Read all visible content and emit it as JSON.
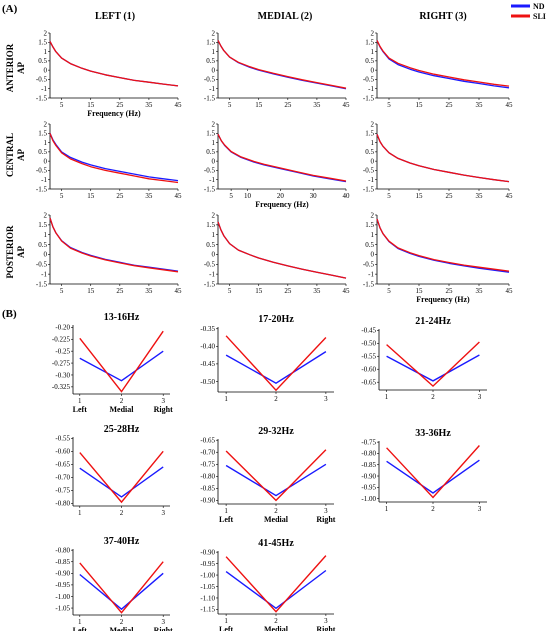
{
  "panel_a_label": "(A)",
  "panel_b_label": "(B)",
  "columns": [
    "LEFT (1)",
    "MEDIAL (2)",
    "RIGHT (3)"
  ],
  "rows": [
    {
      "name": "ANTERIOR",
      "sub": "AP"
    },
    {
      "name": "CENTRAL",
      "sub": "AP"
    },
    {
      "name": "POSTERIOR",
      "sub": "AP"
    }
  ],
  "legend": [
    {
      "label": "ND",
      "color": "#1a1aff"
    },
    {
      "label": "SLI",
      "color": "#ee1111"
    }
  ],
  "chart_data": [
    {
      "type": "line",
      "id": "A-anterior-left",
      "xlabel": "Frequency (Hz)",
      "ylabel": "AP",
      "xticks": [
        5,
        15,
        25,
        35,
        45
      ],
      "yticks": [
        2,
        1.5,
        1,
        0.5,
        0,
        -0.5,
        -1,
        -1.5
      ],
      "xlim": [
        1,
        45
      ],
      "ylim": [
        -1.5,
        2
      ],
      "x": [
        1,
        2,
        3,
        5,
        8,
        12,
        15,
        20,
        25,
        30,
        35,
        40,
        45
      ],
      "series": [
        {
          "name": "ND",
          "values": [
            1.55,
            1.25,
            1.0,
            0.65,
            0.35,
            0.1,
            -0.05,
            -0.25,
            -0.4,
            -0.55,
            -0.65,
            -0.75,
            -0.85
          ]
        },
        {
          "name": "SLI",
          "values": [
            1.55,
            1.25,
            1.0,
            0.65,
            0.35,
            0.1,
            -0.05,
            -0.25,
            -0.4,
            -0.55,
            -0.65,
            -0.75,
            -0.85
          ]
        }
      ]
    },
    {
      "type": "line",
      "id": "A-anterior-medial",
      "xlabel": "",
      "ylabel": "",
      "xticks": [
        5,
        15,
        25,
        35,
        45
      ],
      "yticks": [
        2,
        1.5,
        1,
        0.5,
        0,
        -0.5,
        -1,
        -1.5
      ],
      "xlim": [
        1,
        45
      ],
      "ylim": [
        -1.5,
        2
      ],
      "x": [
        1,
        2,
        3,
        5,
        8,
        12,
        15,
        20,
        25,
        30,
        35,
        40,
        45
      ],
      "series": [
        {
          "name": "ND",
          "values": [
            1.6,
            1.3,
            1.05,
            0.7,
            0.4,
            0.15,
            0.0,
            -0.2,
            -0.38,
            -0.55,
            -0.7,
            -0.85,
            -1.0
          ]
        },
        {
          "name": "SLI",
          "values": [
            1.6,
            1.3,
            1.05,
            0.7,
            0.42,
            0.18,
            0.03,
            -0.17,
            -0.35,
            -0.52,
            -0.67,
            -0.82,
            -0.97
          ]
        }
      ]
    },
    {
      "type": "line",
      "id": "A-anterior-right",
      "xlabel": "",
      "ylabel": "",
      "xticks": [
        5,
        15,
        25,
        35,
        45
      ],
      "yticks": [
        2,
        1.5,
        1,
        0.5,
        0,
        -0.5,
        -1,
        -1.5
      ],
      "xlim": [
        1,
        45
      ],
      "ylim": [
        -1.5,
        2
      ],
      "x": [
        1,
        2,
        3,
        5,
        8,
        12,
        15,
        20,
        25,
        30,
        35,
        40,
        45
      ],
      "series": [
        {
          "name": "ND",
          "values": [
            1.6,
            1.25,
            1.0,
            0.6,
            0.3,
            0.05,
            -0.1,
            -0.3,
            -0.45,
            -0.6,
            -0.72,
            -0.85,
            -0.95
          ]
        },
        {
          "name": "SLI",
          "values": [
            1.6,
            1.28,
            1.03,
            0.65,
            0.37,
            0.13,
            -0.02,
            -0.22,
            -0.37,
            -0.52,
            -0.64,
            -0.76,
            -0.86
          ]
        }
      ]
    },
    {
      "type": "line",
      "id": "A-central-left",
      "xlabel": "",
      "ylabel": "AP",
      "xticks": [
        5,
        15,
        25,
        35,
        45
      ],
      "yticks": [
        2,
        1.5,
        1,
        0.5,
        0,
        -0.5,
        -1,
        -1.5
      ],
      "xlim": [
        1,
        45
      ],
      "ylim": [
        -1.5,
        2
      ],
      "x": [
        1,
        2,
        3,
        5,
        8,
        12,
        15,
        20,
        25,
        30,
        35,
        40,
        45
      ],
      "series": [
        {
          "name": "ND",
          "values": [
            1.5,
            1.15,
            0.9,
            0.5,
            0.2,
            -0.05,
            -0.2,
            -0.4,
            -0.55,
            -0.7,
            -0.85,
            -0.95,
            -1.05
          ]
        },
        {
          "name": "SLI",
          "values": [
            1.5,
            1.1,
            0.85,
            0.45,
            0.12,
            -0.13,
            -0.3,
            -0.5,
            -0.65,
            -0.8,
            -0.95,
            -1.05,
            -1.15
          ]
        }
      ]
    },
    {
      "type": "line",
      "id": "A-central-medial",
      "xlabel": "Frequency (Hz)",
      "ylabel": "",
      "xticks": [
        5,
        10,
        20,
        30,
        40
      ],
      "yticks": [
        2,
        1.5,
        1,
        0.5,
        0,
        -0.5,
        -1,
        -1.5
      ],
      "xlim": [
        1,
        40
      ],
      "ylim": [
        -1.5,
        2
      ],
      "x": [
        1,
        2,
        3,
        5,
        8,
        12,
        15,
        20,
        25,
        30,
        35,
        40
      ],
      "series": [
        {
          "name": "ND",
          "values": [
            1.45,
            1.1,
            0.85,
            0.5,
            0.2,
            -0.05,
            -0.2,
            -0.4,
            -0.6,
            -0.8,
            -0.95,
            -1.1
          ]
        },
        {
          "name": "SLI",
          "values": [
            1.45,
            1.1,
            0.87,
            0.52,
            0.23,
            -0.02,
            -0.17,
            -0.37,
            -0.57,
            -0.77,
            -0.92,
            -1.07
          ]
        }
      ]
    },
    {
      "type": "line",
      "id": "A-central-right",
      "xlabel": "",
      "ylabel": "",
      "xticks": [
        5,
        15,
        25,
        35,
        45
      ],
      "yticks": [
        2,
        1.5,
        1,
        0.5,
        0,
        -0.5,
        -1,
        -1.5
      ],
      "xlim": [
        1,
        45
      ],
      "ylim": [
        -1.5,
        2
      ],
      "x": [
        1,
        2,
        3,
        5,
        8,
        12,
        15,
        20,
        25,
        30,
        35,
        40,
        45
      ],
      "series": [
        {
          "name": "ND",
          "values": [
            1.45,
            1.05,
            0.8,
            0.45,
            0.15,
            -0.1,
            -0.25,
            -0.45,
            -0.6,
            -0.75,
            -0.88,
            -1.0,
            -1.1
          ]
        },
        {
          "name": "SLI",
          "values": [
            1.45,
            1.05,
            0.8,
            0.45,
            0.15,
            -0.1,
            -0.25,
            -0.45,
            -0.6,
            -0.75,
            -0.88,
            -1.0,
            -1.1
          ]
        }
      ]
    },
    {
      "type": "line",
      "id": "A-posterior-left",
      "xlabel": "",
      "ylabel": "AP",
      "xticks": [
        5,
        15,
        25,
        35,
        45
      ],
      "yticks": [
        2,
        1.5,
        1,
        0.5,
        0,
        -0.5,
        -1,
        -1.5
      ],
      "xlim": [
        1,
        45
      ],
      "ylim": [
        -1.5,
        2
      ],
      "x": [
        1,
        2,
        3,
        5,
        8,
        12,
        15,
        20,
        25,
        30,
        35,
        40,
        45
      ],
      "series": [
        {
          "name": "ND",
          "values": [
            1.85,
            1.4,
            1.1,
            0.7,
            0.35,
            0.1,
            -0.05,
            -0.25,
            -0.4,
            -0.55,
            -0.65,
            -0.75,
            -0.85
          ]
        },
        {
          "name": "SLI",
          "values": [
            1.85,
            1.4,
            1.1,
            0.68,
            0.32,
            0.07,
            -0.08,
            -0.28,
            -0.43,
            -0.57,
            -0.68,
            -0.78,
            -0.88
          ]
        }
      ]
    },
    {
      "type": "line",
      "id": "A-posterior-medial",
      "xlabel": "",
      "ylabel": "",
      "xticks": [
        5,
        15,
        25,
        35,
        45
      ],
      "yticks": [
        2,
        1.5,
        1,
        0.5,
        0,
        -0.5,
        -1,
        -1.5
      ],
      "xlim": [
        1,
        45
      ],
      "ylim": [
        -1.5,
        2
      ],
      "x": [
        1,
        2,
        3,
        5,
        8,
        12,
        15,
        20,
        25,
        30,
        35,
        40,
        45
      ],
      "series": [
        {
          "name": "ND",
          "values": [
            1.65,
            1.25,
            0.95,
            0.55,
            0.22,
            -0.02,
            -0.18,
            -0.4,
            -0.58,
            -0.75,
            -0.9,
            -1.05,
            -1.2
          ]
        },
        {
          "name": "SLI",
          "values": [
            1.65,
            1.25,
            0.95,
            0.55,
            0.22,
            -0.02,
            -0.18,
            -0.4,
            -0.58,
            -0.75,
            -0.9,
            -1.05,
            -1.2
          ]
        }
      ]
    },
    {
      "type": "line",
      "id": "A-posterior-right",
      "xlabel": "Frequency (Hz)",
      "ylabel": "",
      "xticks": [
        5,
        15,
        25,
        35,
        45
      ],
      "yticks": [
        2,
        1.5,
        1,
        0.5,
        0,
        -0.5,
        -1,
        -1.5
      ],
      "xlim": [
        1,
        45
      ],
      "ylim": [
        -1.5,
        2
      ],
      "x": [
        1,
        2,
        3,
        5,
        8,
        12,
        15,
        20,
        25,
        30,
        35,
        40,
        45
      ],
      "series": [
        {
          "name": "ND",
          "values": [
            1.8,
            1.35,
            1.05,
            0.65,
            0.3,
            0.05,
            -0.1,
            -0.3,
            -0.45,
            -0.58,
            -0.7,
            -0.8,
            -0.9
          ]
        },
        {
          "name": "SLI",
          "values": [
            1.8,
            1.35,
            1.05,
            0.67,
            0.33,
            0.09,
            -0.06,
            -0.26,
            -0.41,
            -0.54,
            -0.65,
            -0.75,
            -0.85
          ]
        }
      ]
    },
    {
      "type": "line",
      "id": "B-13-16",
      "title": "13-16Hz",
      "categories": [
        "1",
        "2",
        "3"
      ],
      "sublabels": [
        "Left",
        "Medial",
        "Right"
      ],
      "ylim": [
        -0.34,
        -0.195
      ],
      "yticks": [
        -0.2,
        -0.225,
        -0.25,
        -0.275,
        -0.3,
        -0.325
      ],
      "series": [
        {
          "name": "ND",
          "values": [
            -0.265,
            -0.312,
            -0.25
          ]
        },
        {
          "name": "SLI",
          "values": [
            -0.223,
            -0.335,
            -0.208
          ]
        }
      ]
    },
    {
      "type": "line",
      "id": "B-17-20",
      "title": "17-20Hz",
      "categories": [
        "1",
        "2",
        "3"
      ],
      "sublabels": [],
      "ylim": [
        -0.53,
        -0.345
      ],
      "yticks": [
        -0.35,
        -0.4,
        -0.45,
        -0.5
      ],
      "series": [
        {
          "name": "ND",
          "values": [
            -0.425,
            -0.505,
            -0.415
          ]
        },
        {
          "name": "SLI",
          "values": [
            -0.37,
            -0.525,
            -0.375
          ]
        }
      ]
    },
    {
      "type": "line",
      "id": "B-21-24",
      "title": "21-24Hz",
      "categories": [
        "1",
        "2",
        "3"
      ],
      "sublabels": [],
      "ylim": [
        -0.68,
        -0.445
      ],
      "yticks": [
        -0.45,
        -0.5,
        -0.55,
        -0.6,
        -0.65
      ],
      "series": [
        {
          "name": "ND",
          "values": [
            -0.55,
            -0.645,
            -0.545
          ]
        },
        {
          "name": "SLI",
          "values": [
            -0.505,
            -0.665,
            -0.495
          ]
        }
      ]
    },
    {
      "type": "line",
      "id": "B-25-28",
      "title": "25-28Hz",
      "categories": [
        "1",
        "2",
        "3"
      ],
      "sublabels": [],
      "ylim": [
        -0.81,
        -0.545
      ],
      "yticks": [
        -0.55,
        -0.6,
        -0.65,
        -0.7,
        -0.75,
        -0.8
      ],
      "series": [
        {
          "name": "ND",
          "values": [
            -0.665,
            -0.775,
            -0.66
          ]
        },
        {
          "name": "SLI",
          "values": [
            -0.605,
            -0.795,
            -0.6
          ]
        }
      ]
    },
    {
      "type": "line",
      "id": "B-29-32",
      "title": "29-32Hz",
      "categories": [
        "1",
        "2",
        "3"
      ],
      "sublabels": [
        "Left",
        "Medial",
        "Right"
      ],
      "ylim": [
        -0.915,
        -0.645
      ],
      "yticks": [
        -0.65,
        -0.7,
        -0.75,
        -0.8,
        -0.85,
        -0.9
      ],
      "series": [
        {
          "name": "ND",
          "values": [
            -0.755,
            -0.88,
            -0.75
          ]
        },
        {
          "name": "SLI",
          "values": [
            -0.695,
            -0.9,
            -0.69
          ]
        }
      ]
    },
    {
      "type": "line",
      "id": "B-33-36",
      "title": "33-36Hz",
      "categories": [
        "1",
        "2",
        "3"
      ],
      "sublabels": [],
      "ylim": [
        -1.015,
        -0.745
      ],
      "yticks": [
        -0.75,
        -0.8,
        -0.85,
        -0.9,
        -0.95,
        -1.0
      ],
      "series": [
        {
          "name": "ND",
          "values": [
            -0.835,
            -0.975,
            -0.83
          ]
        },
        {
          "name": "SLI",
          "values": [
            -0.775,
            -0.995,
            -0.765
          ]
        }
      ]
    },
    {
      "type": "line",
      "id": "B-37-40",
      "title": "37-40Hz",
      "categories": [
        "1",
        "2",
        "3"
      ],
      "sublabels": [
        "Left",
        "Medial",
        "Right"
      ],
      "ylim": [
        -1.08,
        -0.795
      ],
      "yticks": [
        -0.8,
        -0.85,
        -0.9,
        -0.95,
        -1.0,
        -1.05
      ],
      "series": [
        {
          "name": "ND",
          "values": [
            -0.905,
            -1.055,
            -0.9
          ]
        },
        {
          "name": "SLI",
          "values": [
            -0.855,
            -1.07,
            -0.85
          ]
        }
      ]
    },
    {
      "type": "line",
      "id": "B-41-45",
      "title": "41-45Hz",
      "categories": [
        "1",
        "2",
        "3"
      ],
      "sublabels": [
        "Left",
        "Medial",
        "Right"
      ],
      "ylim": [
        -1.17,
        -0.895
      ],
      "yticks": [
        -0.9,
        -0.95,
        -1.0,
        -1.05,
        -1.1,
        -1.15
      ],
      "series": [
        {
          "name": "ND",
          "values": [
            -0.985,
            -1.145,
            -0.98
          ]
        },
        {
          "name": "SLI",
          "values": [
            -0.92,
            -1.16,
            -0.915
          ]
        }
      ]
    }
  ]
}
